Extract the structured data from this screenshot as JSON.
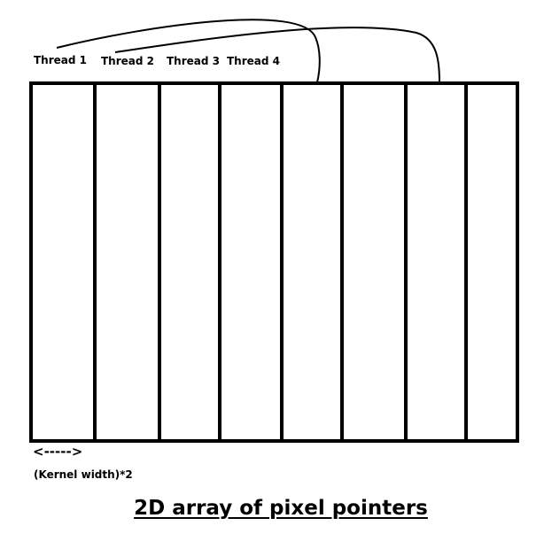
{
  "threads": [
    {
      "label": "Thread 1"
    },
    {
      "label": "Thread 2"
    },
    {
      "label": "Thread 3"
    },
    {
      "label": "Thread 4"
    }
  ],
  "array": {
    "columns": 8
  },
  "kernel": {
    "arrow": "<----->",
    "label": "(Kernel width)*2"
  },
  "caption": "2D array of pixel pointers",
  "colors": {
    "ink": "#000000",
    "background": "#ffffff"
  }
}
